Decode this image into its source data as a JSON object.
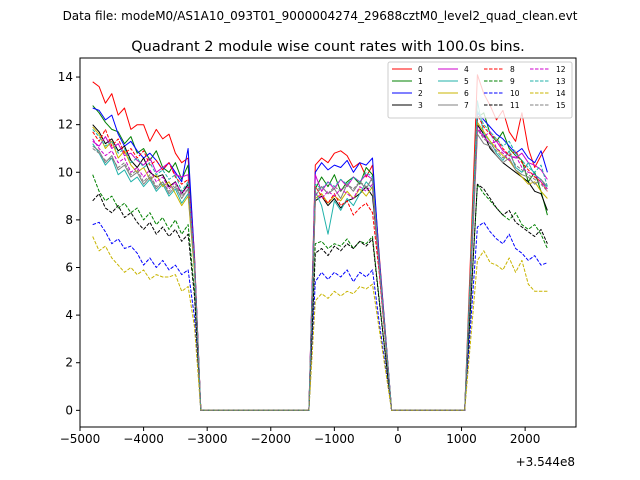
{
  "suptitle": "Data file: modeM0/AS1A10_093T01_9000004274_29688cztM0_level2_quad_clean.evt",
  "chart_data": {
    "type": "line",
    "title": "Quadrant 2 module wise count rates with 100.0s bins.",
    "xlabel": "",
    "ylabel": "",
    "x_offset_label": "+3.544e8",
    "xlim": [
      -5000,
      2800
    ],
    "ylim": [
      -0.7,
      14.8
    ],
    "xticks": [
      -5000,
      -4000,
      -3000,
      -2000,
      -1000,
      0,
      1000,
      2000
    ],
    "xtick_labels": [
      "−5000",
      "−4000",
      "−3000",
      "−2000",
      "−1000",
      "0",
      "1000",
      "2000"
    ],
    "yticks": [
      0,
      2,
      4,
      6,
      8,
      10,
      12,
      14
    ],
    "ytick_labels": [
      "0",
      "2",
      "4",
      "6",
      "8",
      "10",
      "12",
      "14"
    ],
    "legend_position": "top-right",
    "series": [
      {
        "name": "0",
        "color": "#ff0000",
        "dash": "solid",
        "values": [
          13.8,
          13.6,
          12.9,
          13.3,
          12.4,
          12.7,
          11.8,
          12.0,
          12.0,
          11.3,
          11.8,
          11.4,
          11.6,
          10.8,
          10.4,
          10.6,
          6.5,
          0,
          10.3,
          10.6,
          10.4,
          10.8,
          10.9,
          10.7,
          10.2,
          10.4,
          9.8,
          10.3,
          6.7,
          0,
          14.1,
          13.3,
          12.8,
          12.2,
          12.6,
          11.7,
          11.3,
          12.5,
          11.0,
          10.2,
          10.7,
          11.1
        ]
      },
      {
        "name": "1",
        "color": "#008000",
        "dash": "solid",
        "values": [
          12.8,
          12.5,
          12.1,
          11.8,
          11.7,
          11.2,
          11.5,
          10.8,
          11.0,
          10.5,
          10.9,
          10.2,
          10.0,
          10.4,
          9.7,
          10.3,
          6.3,
          0,
          9.3,
          9.8,
          9.4,
          9.9,
          9.2,
          9.6,
          9.8,
          9.5,
          10.2,
          9.9,
          6.5,
          0,
          12.3,
          12.5,
          11.6,
          11.3,
          11.7,
          11.0,
          10.7,
          10.5,
          9.6,
          10.0,
          9.2,
          8.2
        ]
      },
      {
        "name": "2",
        "color": "#0000ff",
        "dash": "solid",
        "values": [
          12.7,
          12.6,
          12.2,
          12.4,
          11.6,
          11.1,
          11.3,
          10.9,
          10.6,
          10.8,
          10.5,
          10.1,
          10.4,
          10.0,
          9.6,
          11.0,
          6.4,
          0,
          10.0,
          10.4,
          10.1,
          10.3,
          10.2,
          10.5,
          10.0,
          10.4,
          10.3,
          10.6,
          6.6,
          0,
          12.5,
          12.2,
          11.9,
          11.6,
          11.4,
          11.1,
          10.8,
          11.0,
          10.6,
          10.4,
          10.9,
          10.0
        ]
      },
      {
        "name": "3",
        "color": "#000000",
        "dash": "solid",
        "values": [
          12.0,
          11.7,
          11.2,
          11.4,
          10.9,
          11.1,
          10.5,
          10.2,
          10.6,
          10.0,
          9.8,
          9.9,
          9.4,
          9.6,
          9.1,
          9.5,
          6.1,
          0,
          8.8,
          9.0,
          8.6,
          8.9,
          8.5,
          8.8,
          8.9,
          9.1,
          9.4,
          9.0,
          6.2,
          0,
          12.0,
          11.6,
          11.0,
          10.7,
          10.4,
          10.2,
          10.0,
          9.8,
          9.6,
          9.2,
          9.1,
          8.4
        ]
      },
      {
        "name": "4",
        "color": "#cc00cc",
        "dash": "solid",
        "values": [
          11.3,
          11.1,
          11.5,
          11.0,
          11.2,
          10.7,
          10.8,
          10.5,
          10.3,
          10.6,
          10.0,
          10.2,
          10.4,
          9.9,
          9.8,
          9.9,
          6.3,
          0,
          9.9,
          9.2,
          9.6,
          9.3,
          9.7,
          9.4,
          9.8,
          9.6,
          9.9,
          9.7,
          6.4,
          0,
          11.8,
          11.5,
          11.2,
          11.3,
          10.9,
          10.7,
          10.6,
          10.8,
          10.4,
          10.3,
          10.1,
          9.7
        ]
      },
      {
        "name": "5",
        "color": "#20b2aa",
        "dash": "solid",
        "values": [
          11.2,
          10.8,
          10.3,
          10.6,
          9.9,
          10.1,
          9.6,
          9.8,
          9.4,
          9.7,
          9.2,
          9.5,
          9.0,
          9.3,
          8.7,
          9.1,
          5.9,
          0,
          9.2,
          8.6,
          7.4,
          8.8,
          8.4,
          8.9,
          8.6,
          9.1,
          9.6,
          9.3,
          6.0,
          0,
          13.0,
          11.6,
          11.3,
          10.8,
          10.5,
          10.9,
          10.2,
          10.0,
          10.4,
          9.9,
          9.7,
          9.3
        ]
      },
      {
        "name": "6",
        "color": "#c8b400",
        "dash": "solid",
        "values": [
          11.9,
          11.6,
          11.0,
          11.3,
          10.6,
          10.9,
          10.3,
          10.0,
          10.2,
          9.7,
          9.9,
          9.4,
          9.6,
          9.1,
          8.6,
          9.0,
          5.8,
          0,
          8.9,
          9.1,
          8.7,
          9.0,
          8.8,
          9.2,
          8.9,
          9.3,
          9.0,
          9.4,
          6.1,
          0,
          12.1,
          11.7,
          11.3,
          11.0,
          10.7,
          10.5,
          10.1,
          9.8,
          9.5,
          9.6,
          9.2,
          8.9
        ]
      },
      {
        "name": "7",
        "color": "#808080",
        "dash": "solid",
        "values": [
          11.1,
          10.9,
          10.4,
          10.7,
          10.1,
          10.3,
          9.8,
          10.0,
          9.5,
          9.8,
          9.3,
          9.6,
          9.1,
          9.4,
          8.9,
          9.3,
          6.0,
          0,
          9.0,
          9.4,
          9.1,
          9.3,
          8.9,
          9.5,
          9.2,
          9.6,
          9.3,
          9.8,
          6.2,
          0,
          11.6,
          11.2,
          11.1,
          10.7,
          10.4,
          10.6,
          10.1,
          9.9,
          9.8,
          9.5,
          9.7,
          9.4
        ]
      },
      {
        "name": "8",
        "color": "#ff0000",
        "dash": "dashed",
        "values": [
          11.7,
          11.3,
          11.8,
          11.1,
          11.4,
          10.8,
          11.0,
          10.6,
          10.9,
          10.3,
          10.5,
          10.1,
          10.4,
          9.8,
          9.5,
          9.7,
          6.2,
          0,
          9.4,
          9.0,
          8.7,
          9.1,
          8.6,
          8.8,
          8.2,
          8.5,
          8.7,
          8.3,
          5.9,
          0,
          12.4,
          11.9,
          11.6,
          11.4,
          11.0,
          10.7,
          10.9,
          10.4,
          10.1,
          9.8,
          9.6,
          9.2
        ]
      },
      {
        "name": "9",
        "color": "#008000",
        "dash": "dashed",
        "values": [
          9.9,
          9.2,
          8.8,
          9.0,
          8.5,
          8.7,
          8.3,
          8.5,
          8.0,
          8.3,
          7.8,
          8.1,
          7.6,
          8.0,
          7.4,
          7.8,
          5.0,
          0,
          7.0,
          7.1,
          6.8,
          7.0,
          6.9,
          7.2,
          6.8,
          7.1,
          7.0,
          7.3,
          4.8,
          0,
          9.5,
          9.1,
          8.8,
          8.5,
          8.2,
          8.0,
          8.3,
          7.8,
          7.6,
          7.8,
          7.4,
          6.8
        ]
      },
      {
        "name": "10",
        "color": "#0000ff",
        "dash": "dashed",
        "values": [
          7.8,
          7.9,
          7.5,
          7.0,
          7.2,
          6.8,
          6.9,
          6.6,
          6.1,
          6.4,
          6.0,
          6.3,
          5.9,
          6.1,
          5.7,
          5.9,
          3.9,
          0,
          5.4,
          5.8,
          5.5,
          5.8,
          5.6,
          5.9,
          5.4,
          5.8,
          5.6,
          5.9,
          3.8,
          0,
          7.7,
          7.9,
          7.5,
          7.2,
          7.0,
          7.4,
          6.8,
          6.6,
          6.3,
          6.5,
          6.1,
          6.2
        ]
      },
      {
        "name": "11",
        "color": "#000000",
        "dash": "dashed",
        "values": [
          8.8,
          9.1,
          8.5,
          8.3,
          8.6,
          8.1,
          8.3,
          7.9,
          7.6,
          7.9,
          7.4,
          7.7,
          7.3,
          7.6,
          7.1,
          7.4,
          4.8,
          0,
          6.6,
          6.8,
          6.5,
          6.9,
          6.7,
          7.0,
          6.8,
          7.1,
          6.9,
          7.2,
          4.7,
          0,
          9.5,
          9.3,
          8.9,
          8.5,
          8.2,
          8.4,
          7.9,
          7.7,
          7.5,
          7.3,
          7.6,
          7.0
        ]
      },
      {
        "name": "12",
        "color": "#cc00cc",
        "dash": "dashed",
        "values": [
          11.4,
          11.0,
          10.7,
          10.9,
          10.4,
          10.6,
          10.0,
          10.2,
          9.8,
          10.1,
          9.6,
          9.8,
          9.3,
          9.6,
          9.1,
          9.4,
          6.1,
          0,
          9.1,
          8.9,
          9.2,
          9.0,
          9.3,
          9.1,
          8.9,
          9.4,
          9.2,
          9.5,
          6.1,
          0,
          11.9,
          11.5,
          11.7,
          11.0,
          10.8,
          10.5,
          10.7,
          10.2,
          10.0,
          9.9,
          9.6,
          9.3
        ]
      },
      {
        "name": "13",
        "color": "#20b2aa",
        "dash": "dashed",
        "values": [
          11.8,
          11.5,
          11.1,
          11.3,
          10.8,
          11.0,
          10.4,
          10.6,
          10.2,
          10.4,
          9.9,
          10.1,
          9.7,
          9.9,
          9.2,
          9.6,
          6.2,
          0,
          9.5,
          9.3,
          9.6,
          9.4,
          9.7,
          9.5,
          9.8,
          9.6,
          10.0,
          9.8,
          6.4,
          0,
          12.6,
          12.0,
          11.7,
          11.4,
          11.1,
          11.3,
          10.8,
          10.5,
          10.2,
          10.0,
          10.3,
          9.4
        ]
      },
      {
        "name": "14",
        "color": "#c8b400",
        "dash": "dashed",
        "values": [
          7.3,
          6.7,
          6.9,
          6.4,
          6.1,
          5.8,
          6.0,
          5.7,
          5.9,
          5.5,
          5.7,
          5.6,
          5.6,
          5.7,
          5.0,
          5.2,
          3.5,
          0,
          4.6,
          4.9,
          4.7,
          5.0,
          4.8,
          5.0,
          4.9,
          5.2,
          5.1,
          5.3,
          3.5,
          0,
          6.3,
          6.7,
          6.2,
          6.1,
          5.9,
          6.4,
          5.8,
          6.3,
          5.3,
          5.0,
          5.0,
          5.0
        ]
      },
      {
        "name": "15",
        "color": "#808080",
        "dash": "dashed",
        "values": [
          11.0,
          10.8,
          10.5,
          10.6,
          10.2,
          10.4,
          9.9,
          10.1,
          9.6,
          9.9,
          9.4,
          9.6,
          9.2,
          9.5,
          9.0,
          9.3,
          6.0,
          0,
          9.2,
          9.4,
          9.1,
          9.4,
          9.2,
          9.5,
          9.3,
          9.6,
          9.4,
          9.7,
          6.2,
          0,
          11.8,
          11.4,
          11.2,
          10.9,
          10.6,
          10.8,
          10.3,
          10.1,
          9.9,
          9.7,
          9.5,
          9.2
        ]
      }
    ]
  }
}
